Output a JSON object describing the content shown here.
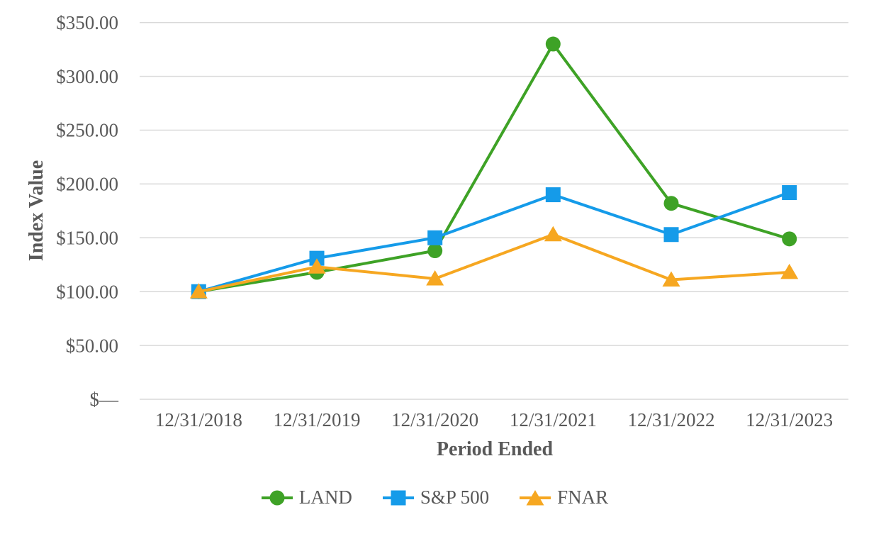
{
  "chart_data": {
    "type": "line",
    "title": "",
    "xlabel": "Period Ended",
    "ylabel": "Index Value",
    "categories": [
      "12/31/2018",
      "12/31/2019",
      "12/31/2020",
      "12/31/2021",
      "12/31/2022",
      "12/31/2023"
    ],
    "series": [
      {
        "name": "LAND",
        "marker": "circle",
        "color": "#3EA226",
        "values": [
          100,
          118,
          138,
          330,
          182,
          149
        ]
      },
      {
        "name": "S&P 500",
        "marker": "square",
        "color": "#159BE9",
        "values": [
          100,
          131,
          150,
          190,
          153,
          192
        ]
      },
      {
        "name": "FNAR",
        "marker": "triangle",
        "color": "#F6A721",
        "values": [
          100,
          123,
          112,
          153,
          111,
          118
        ]
      }
    ],
    "y_axis": {
      "min": 0,
      "max": 350,
      "tick_interval": 50,
      "tick_labels": [
        "$—",
        "$50.00",
        "$100.00",
        "$150.00",
        "$200.00",
        "$250.00",
        "$300.00",
        "$350.00"
      ]
    },
    "grid": true,
    "legend_position": "bottom",
    "colors": {
      "text": "#595959",
      "gridline": "#D9D9D9",
      "background": "#FFFFFF"
    }
  }
}
